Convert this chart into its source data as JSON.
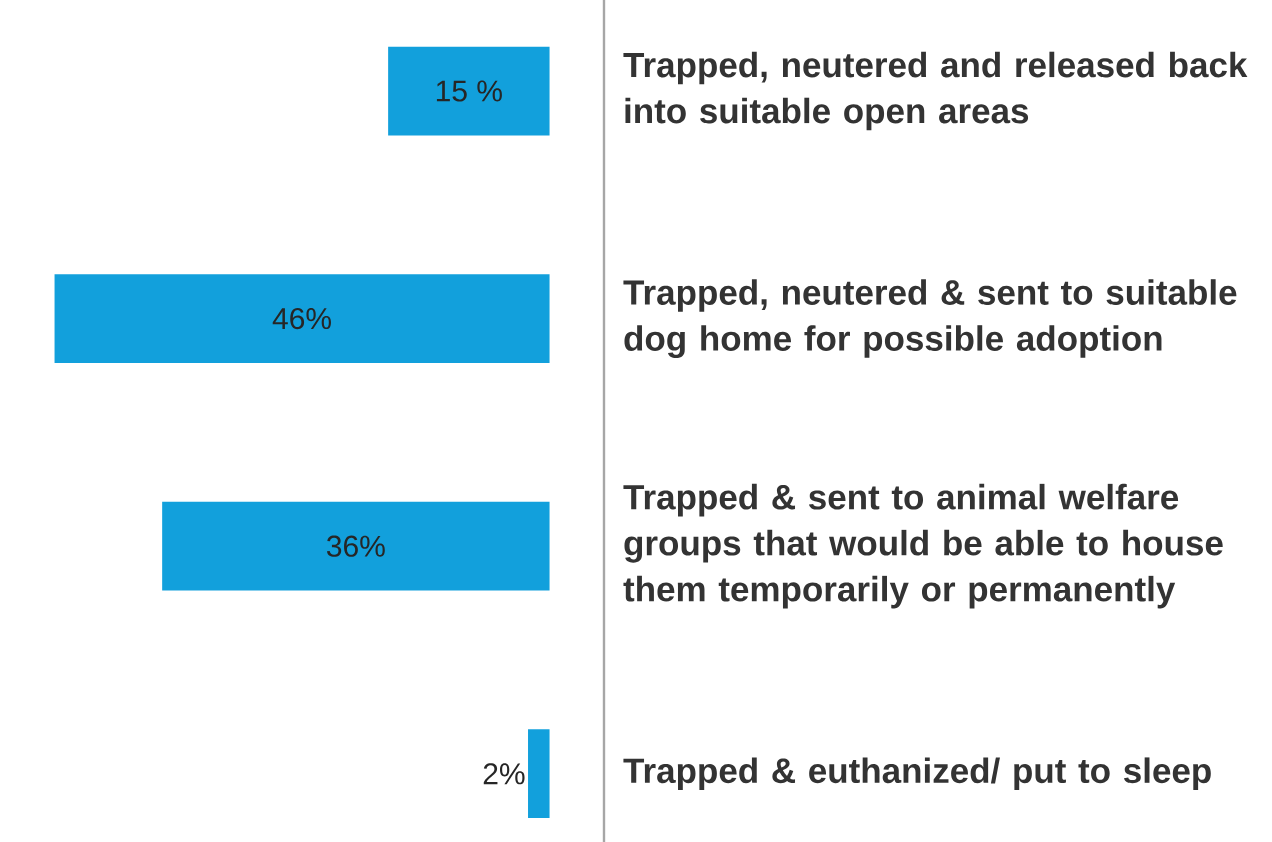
{
  "chart_data": {
    "type": "bar",
    "orientation": "horizontal",
    "categories": [
      "Trapped, neutered and released back into suitable open areas",
      "Trapped, neutered & sent to suitable dog home for possible adoption",
      "Trapped & sent to animal welfare groups that would be able to house them temporarily or permanently",
      "Trapped & euthanized/ put to sleep"
    ],
    "values": [
      15,
      46,
      36,
      2
    ],
    "value_labels": [
      "15 %",
      "46%",
      "36%",
      "2%"
    ],
    "color": "#12a0dc",
    "tick_labels": "y"
  }
}
